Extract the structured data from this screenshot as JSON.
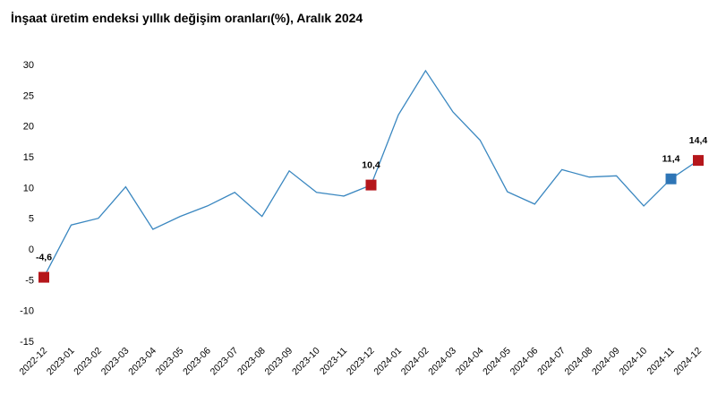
{
  "chart_data": {
    "type": "line",
    "title": "İnşaat üretim endeksi yıllık değişim oranları(%), Aralık 2024",
    "xlabel": "",
    "ylabel": "",
    "ylim": [
      -15,
      30
    ],
    "yticks": [
      30,
      25,
      20,
      15,
      10,
      5,
      0,
      -5,
      -10,
      -15
    ],
    "grid": false,
    "categories": [
      "2022-12",
      "2023-01",
      "2023-02",
      "2023-03",
      "2023-04",
      "2023-05",
      "2023-06",
      "2023-07",
      "2023-08",
      "2023-09",
      "2023-10",
      "2023-11",
      "2023-12",
      "2024-01",
      "2024-02",
      "2024-03",
      "2024-04",
      "2024-05",
      "2024-06",
      "2024-07",
      "2024-08",
      "2024-09",
      "2024-10",
      "2024-11",
      "2024-12"
    ],
    "series": [
      {
        "values": [
          -4.6,
          3.9,
          5.0,
          10.1,
          3.2,
          5.3,
          7.0,
          9.2,
          5.3,
          12.7,
          9.2,
          8.6,
          10.4,
          21.8,
          29.0,
          22.3,
          17.7,
          9.3,
          7.3,
          12.9,
          11.7,
          11.9,
          7.0,
          11.4,
          14.4
        ],
        "color": "#3a87c0"
      }
    ],
    "highlighted_points": [
      {
        "category": "2022-12",
        "label": "-4,6",
        "color": "#b5161b"
      },
      {
        "category": "2023-12",
        "label": "10,4",
        "color": "#b5161b"
      },
      {
        "category": "2024-11",
        "label": "11,4",
        "color": "#2e75b6"
      },
      {
        "category": "2024-12",
        "label": "14,4",
        "color": "#b5161b"
      }
    ]
  }
}
